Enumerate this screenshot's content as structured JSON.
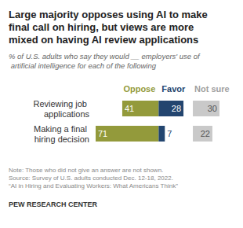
{
  "chart_data": {
    "type": "bar",
    "orientation": "horizontal",
    "title": "Large majority opposes using AI to make final call on hiring, but views are more mixed on having AI review applications",
    "subtitle": "% of U.S. adults who say they would __ employers' use of artificial intelligence for each of the following",
    "categories": [
      "Reviewing job applications",
      "Making a final hiring decision"
    ],
    "series": [
      {
        "name": "Oppose",
        "color": "#939a3b",
        "values": [
          41,
          71
        ]
      },
      {
        "name": "Favor",
        "color": "#23456f",
        "values": [
          28,
          7
        ]
      },
      {
        "name": "Not sure",
        "color": "#c9c9c9",
        "values": [
          30,
          22
        ]
      }
    ],
    "data_labels": true,
    "tick_labels": "y",
    "grid": false,
    "notes": [
      "Note: Those who did not give an answer are not shown.",
      "Source: Survey of U.S. adults conducted Dec. 12-18, 2022.",
      "“AI in Hiring and Evaluating Workers: What Americans Think”"
    ],
    "credit": "PEW RESEARCH CENTER"
  }
}
